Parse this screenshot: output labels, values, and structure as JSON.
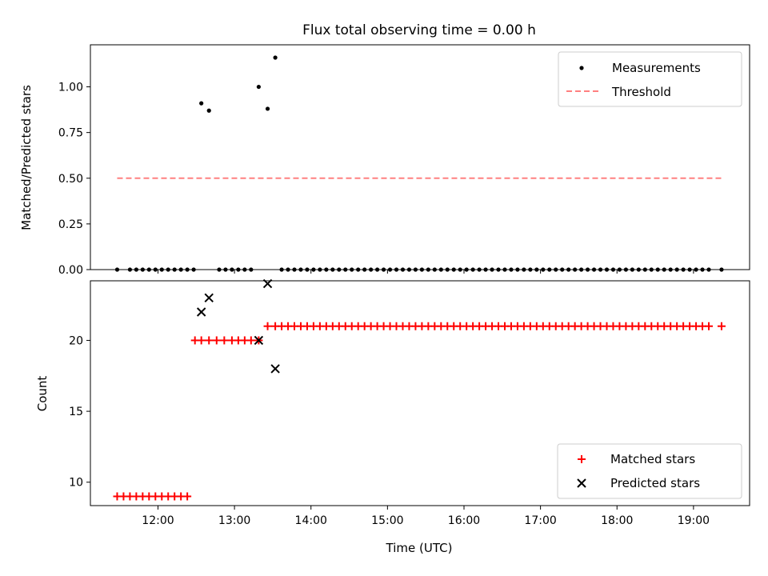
{
  "title": "Flux total observing time = 0.00 h",
  "colors": {
    "matched": "#ff0000",
    "predicted": "#000000",
    "threshold": "#ff8080",
    "measurement": "#000000"
  },
  "chart_data": [
    {
      "type": "scatter",
      "title": "Flux total observing time = 0.00 h",
      "xlabel": "",
      "ylabel": "Matched/Predicted stars",
      "x_unit": "time (UTC)",
      "xlim": [
        "11:07",
        "19:44"
      ],
      "ylim": [
        0,
        1.23
      ],
      "y_ticks": [
        0.0,
        0.25,
        0.5,
        0.75,
        1.0
      ],
      "y_tick_labels": [
        "0.00",
        "0.25",
        "0.50",
        "0.75",
        "1.00"
      ],
      "grid": false,
      "legend_position": "top-right",
      "series": [
        {
          "name": "Measurements",
          "marker": "dot",
          "x": [
            "11:28",
            "11:38",
            "11:43",
            "11:48",
            "11:53",
            "11:58",
            "12:03",
            "12:08",
            "12:13",
            "12:18",
            "12:23",
            "12:28",
            "12:34",
            "12:40",
            "12:48",
            "12:53",
            "12:58",
            "13:03",
            "13:08",
            "13:13",
            "13:19",
            "13:26",
            "13:32",
            "13:37",
            "13:42",
            "13:47",
            "13:52",
            "13:57",
            "14:02",
            "14:07",
            "14:12",
            "14:17",
            "14:22",
            "14:27",
            "14:32",
            "14:37",
            "14:42",
            "14:47",
            "14:52",
            "14:57",
            "15:02",
            "15:07",
            "15:12",
            "15:17",
            "15:22",
            "15:27",
            "15:32",
            "15:37",
            "15:42",
            "15:47",
            "15:52",
            "15:57",
            "16:02",
            "16:07",
            "16:12",
            "16:17",
            "16:22",
            "16:27",
            "16:32",
            "16:37",
            "16:42",
            "16:47",
            "16:52",
            "16:57",
            "17:02",
            "17:07",
            "17:12",
            "17:17",
            "17:22",
            "17:27",
            "17:32",
            "17:37",
            "17:42",
            "17:47",
            "17:52",
            "17:57",
            "18:02",
            "18:07",
            "18:12",
            "18:17",
            "18:22",
            "18:27",
            "18:32",
            "18:37",
            "18:42",
            "18:47",
            "18:52",
            "18:57",
            "19:02",
            "19:07",
            "19:12",
            "19:22"
          ],
          "y": [
            0,
            0,
            0,
            0,
            0,
            0,
            0,
            0,
            0,
            0,
            0,
            0,
            0.91,
            0.87,
            0,
            0,
            0,
            0,
            0,
            0,
            1.0,
            0.88,
            1.16,
            0,
            0,
            0,
            0,
            0,
            0,
            0,
            0,
            0,
            0,
            0,
            0,
            0,
            0,
            0,
            0,
            0,
            0,
            0,
            0,
            0,
            0,
            0,
            0,
            0,
            0,
            0,
            0,
            0,
            0,
            0,
            0,
            0,
            0,
            0,
            0,
            0,
            0,
            0,
            0,
            0,
            0,
            0,
            0,
            0,
            0,
            0,
            0,
            0,
            0,
            0,
            0,
            0,
            0,
            0,
            0,
            0,
            0,
            0,
            0,
            0,
            0,
            0,
            0,
            0,
            0,
            0,
            0,
            0
          ]
        },
        {
          "name": "Threshold",
          "marker": "dashed-line",
          "x": [
            "11:28",
            "19:22"
          ],
          "y": [
            0.5,
            0.5
          ]
        }
      ]
    },
    {
      "type": "scatter",
      "title": "",
      "xlabel": "Time (UTC)",
      "ylabel": "Count",
      "x_unit": "time (UTC)",
      "xlim": [
        "11:07",
        "19:44"
      ],
      "ylim": [
        8.35,
        24.2
      ],
      "y_ticks": [
        10,
        15,
        20
      ],
      "y_tick_labels": [
        "10",
        "15",
        "20"
      ],
      "x_ticks": [
        "12:00",
        "13:00",
        "14:00",
        "15:00",
        "16:00",
        "17:00",
        "18:00",
        "19:00"
      ],
      "grid": false,
      "legend_position": "bottom-right",
      "series": [
        {
          "name": "Matched stars",
          "marker": "plus",
          "x": [
            "11:28",
            "11:33",
            "11:38",
            "11:43",
            "11:48",
            "11:53",
            "11:58",
            "12:03",
            "12:08",
            "12:13",
            "12:18",
            "12:23",
            "12:29",
            "12:34",
            "12:40",
            "12:46",
            "12:52",
            "12:58",
            "13:03",
            "13:08",
            "13:13",
            "13:19",
            "13:26",
            "13:32",
            "13:37",
            "13:42",
            "13:47",
            "13:52",
            "13:57",
            "14:02",
            "14:07",
            "14:12",
            "14:17",
            "14:22",
            "14:27",
            "14:32",
            "14:37",
            "14:42",
            "14:47",
            "14:52",
            "14:57",
            "15:02",
            "15:07",
            "15:12",
            "15:17",
            "15:22",
            "15:27",
            "15:32",
            "15:37",
            "15:42",
            "15:47",
            "15:52",
            "15:57",
            "16:02",
            "16:07",
            "16:12",
            "16:17",
            "16:22",
            "16:27",
            "16:32",
            "16:37",
            "16:42",
            "16:47",
            "16:52",
            "16:57",
            "17:02",
            "17:07",
            "17:12",
            "17:17",
            "17:22",
            "17:27",
            "17:32",
            "17:37",
            "17:42",
            "17:47",
            "17:52",
            "17:57",
            "18:02",
            "18:07",
            "18:12",
            "18:17",
            "18:22",
            "18:27",
            "18:32",
            "18:37",
            "18:42",
            "18:47",
            "18:52",
            "18:57",
            "19:02",
            "19:07",
            "19:12",
            "19:22"
          ],
          "y": [
            9,
            9,
            9,
            9,
            9,
            9,
            9,
            9,
            9,
            9,
            9,
            9,
            20,
            20,
            20,
            20,
            20,
            20,
            20,
            20,
            20,
            20,
            21,
            21,
            21,
            21,
            21,
            21,
            21,
            21,
            21,
            21,
            21,
            21,
            21,
            21,
            21,
            21,
            21,
            21,
            21,
            21,
            21,
            21,
            21,
            21,
            21,
            21,
            21,
            21,
            21,
            21,
            21,
            21,
            21,
            21,
            21,
            21,
            21,
            21,
            21,
            21,
            21,
            21,
            21,
            21,
            21,
            21,
            21,
            21,
            21,
            21,
            21,
            21,
            21,
            21,
            21,
            21,
            21,
            21,
            21,
            21,
            21,
            21,
            21,
            21,
            21,
            21,
            21,
            21,
            21,
            21,
            21
          ]
        },
        {
          "name": "Predicted stars",
          "marker": "x",
          "x": [
            "12:34",
            "12:40",
            "13:19",
            "13:26",
            "13:32"
          ],
          "y": [
            22,
            23,
            20,
            24,
            18
          ]
        }
      ]
    }
  ]
}
